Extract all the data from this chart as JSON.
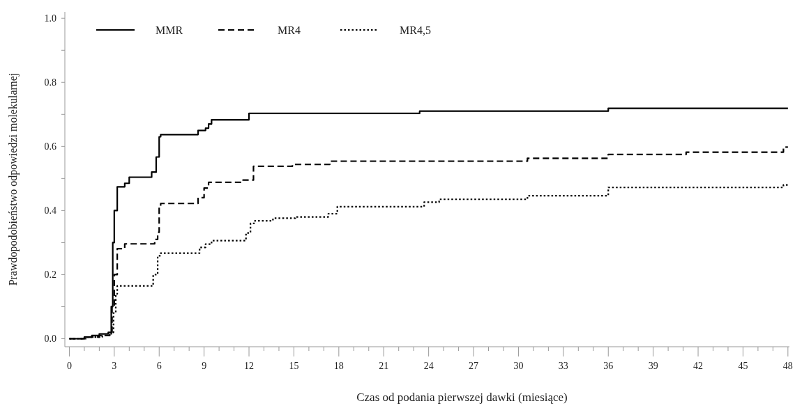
{
  "chart_data": {
    "type": "step",
    "xlabel": "Czas od podania pierwszej dawki (miesiące)",
    "ylabel": "Prawdopodobieństwo odpowiedzi molekularnej",
    "xlim": [
      -0.3,
      48.1
    ],
    "ylim": [
      -0.025,
      1.02
    ],
    "xticks": [
      0,
      {
        "value": 1,
        "label": null
      },
      {
        "value": 2,
        "label": null
      },
      3,
      {
        "value": 4,
        "label": null
      },
      {
        "value": 5,
        "label": null
      },
      6,
      {
        "value": 7,
        "label": null
      },
      {
        "value": 8,
        "label": null
      },
      9,
      {
        "value": 10,
        "label": null
      },
      {
        "value": 11,
        "label": null
      },
      12,
      {
        "value": 13,
        "label": null
      },
      {
        "value": 14,
        "label": null
      },
      15,
      {
        "value": 16,
        "label": null
      },
      {
        "value": 17,
        "label": null
      },
      18,
      {
        "value": 19,
        "label": null
      },
      {
        "value": 20,
        "label": null
      },
      21,
      {
        "value": 22,
        "label": null
      },
      {
        "value": 23,
        "label": null
      },
      24,
      {
        "value": 25,
        "label": null
      },
      {
        "value": 26,
        "label": null
      },
      27,
      {
        "value": 28,
        "label": null
      },
      {
        "value": 29,
        "label": null
      },
      30,
      {
        "value": 31,
        "label": null
      },
      {
        "value": 32,
        "label": null
      },
      33,
      {
        "value": 34,
        "label": null
      },
      {
        "value": 35,
        "label": null
      },
      36,
      {
        "value": 37,
        "label": null
      },
      {
        "value": 38,
        "label": null
      },
      39,
      {
        "value": 40,
        "label": null
      },
      {
        "value": 41,
        "label": null
      },
      42,
      {
        "value": 43,
        "label": null
      },
      {
        "value": 44,
        "label": null
      },
      45,
      {
        "value": 46,
        "label": null
      },
      {
        "value": 47,
        "label": null
      },
      48
    ],
    "yticks": [
      {
        "value": 0,
        "label": "0.0"
      },
      {
        "value": 0.1,
        "label": null
      },
      {
        "value": 0.2,
        "label": "0.2"
      },
      {
        "value": 0.3,
        "label": null
      },
      {
        "value": 0.4,
        "label": "0.4"
      },
      {
        "value": 0.5,
        "label": null
      },
      {
        "value": 0.6,
        "label": "0.6"
      },
      {
        "value": 0.7,
        "label": null
      },
      {
        "value": 0.8,
        "label": "0.8"
      },
      {
        "value": 0.9,
        "label": null
      },
      {
        "value": 1,
        "label": "1.0"
      }
    ],
    "grid": false,
    "legend": "top left",
    "marker": "none",
    "series": [
      {
        "name": "MMR",
        "color": "#000000",
        "line_style": "solid",
        "x": [
          0,
          1,
          1.5,
          2,
          2.6,
          2.8,
          2.9,
          3.0,
          3.2,
          3.7,
          4.0,
          5.5,
          5.8,
          6.0,
          6.1,
          8.6,
          9.1,
          9.3,
          9.5,
          12.0,
          23.4,
          36.0,
          48
        ],
        "values": [
          0,
          0.005,
          0.01,
          0.015,
          0.02,
          0.1,
          0.3,
          0.4,
          0.474,
          0.485,
          0.504,
          0.52,
          0.567,
          0.63,
          0.637,
          0.65,
          0.657,
          0.67,
          0.683,
          0.703,
          0.71,
          0.719,
          0.719
        ]
      },
      {
        "name": "MR4",
        "color": "#000000",
        "line_style": "dashed",
        "x": [
          0,
          1,
          2,
          2.7,
          2.85,
          3.0,
          3.2,
          3.7,
          5.7,
          5.9,
          6.0,
          6.1,
          8.6,
          9.0,
          9.3,
          11.6,
          12.3,
          14.9,
          17.4,
          30.6,
          36.0,
          41.2,
          47.7,
          48
        ],
        "values": [
          0,
          0.005,
          0.01,
          0.02,
          0.1,
          0.2,
          0.281,
          0.296,
          0.31,
          0.332,
          0.415,
          0.422,
          0.44,
          0.47,
          0.488,
          0.495,
          0.538,
          0.544,
          0.554,
          0.563,
          0.575,
          0.582,
          0.598,
          0.598
        ]
      },
      {
        "name": "MR4,5",
        "color": "#000000",
        "line_style": "dotted",
        "x": [
          0,
          1.2,
          2.2,
          2.8,
          2.95,
          3.1,
          3.2,
          5.6,
          5.9,
          6.1,
          8.7,
          9.1,
          9.5,
          11.8,
          12.1,
          12.4,
          13.6,
          15.1,
          17.3,
          17.9,
          23.7,
          24.7,
          30.6,
          36.0,
          47.7,
          48
        ],
        "values": [
          0,
          0.005,
          0.01,
          0.02,
          0.08,
          0.14,
          0.165,
          0.2,
          0.259,
          0.267,
          0.285,
          0.295,
          0.306,
          0.33,
          0.36,
          0.368,
          0.376,
          0.38,
          0.39,
          0.412,
          0.426,
          0.435,
          0.446,
          0.472,
          0.48,
          0.48
        ]
      }
    ]
  }
}
